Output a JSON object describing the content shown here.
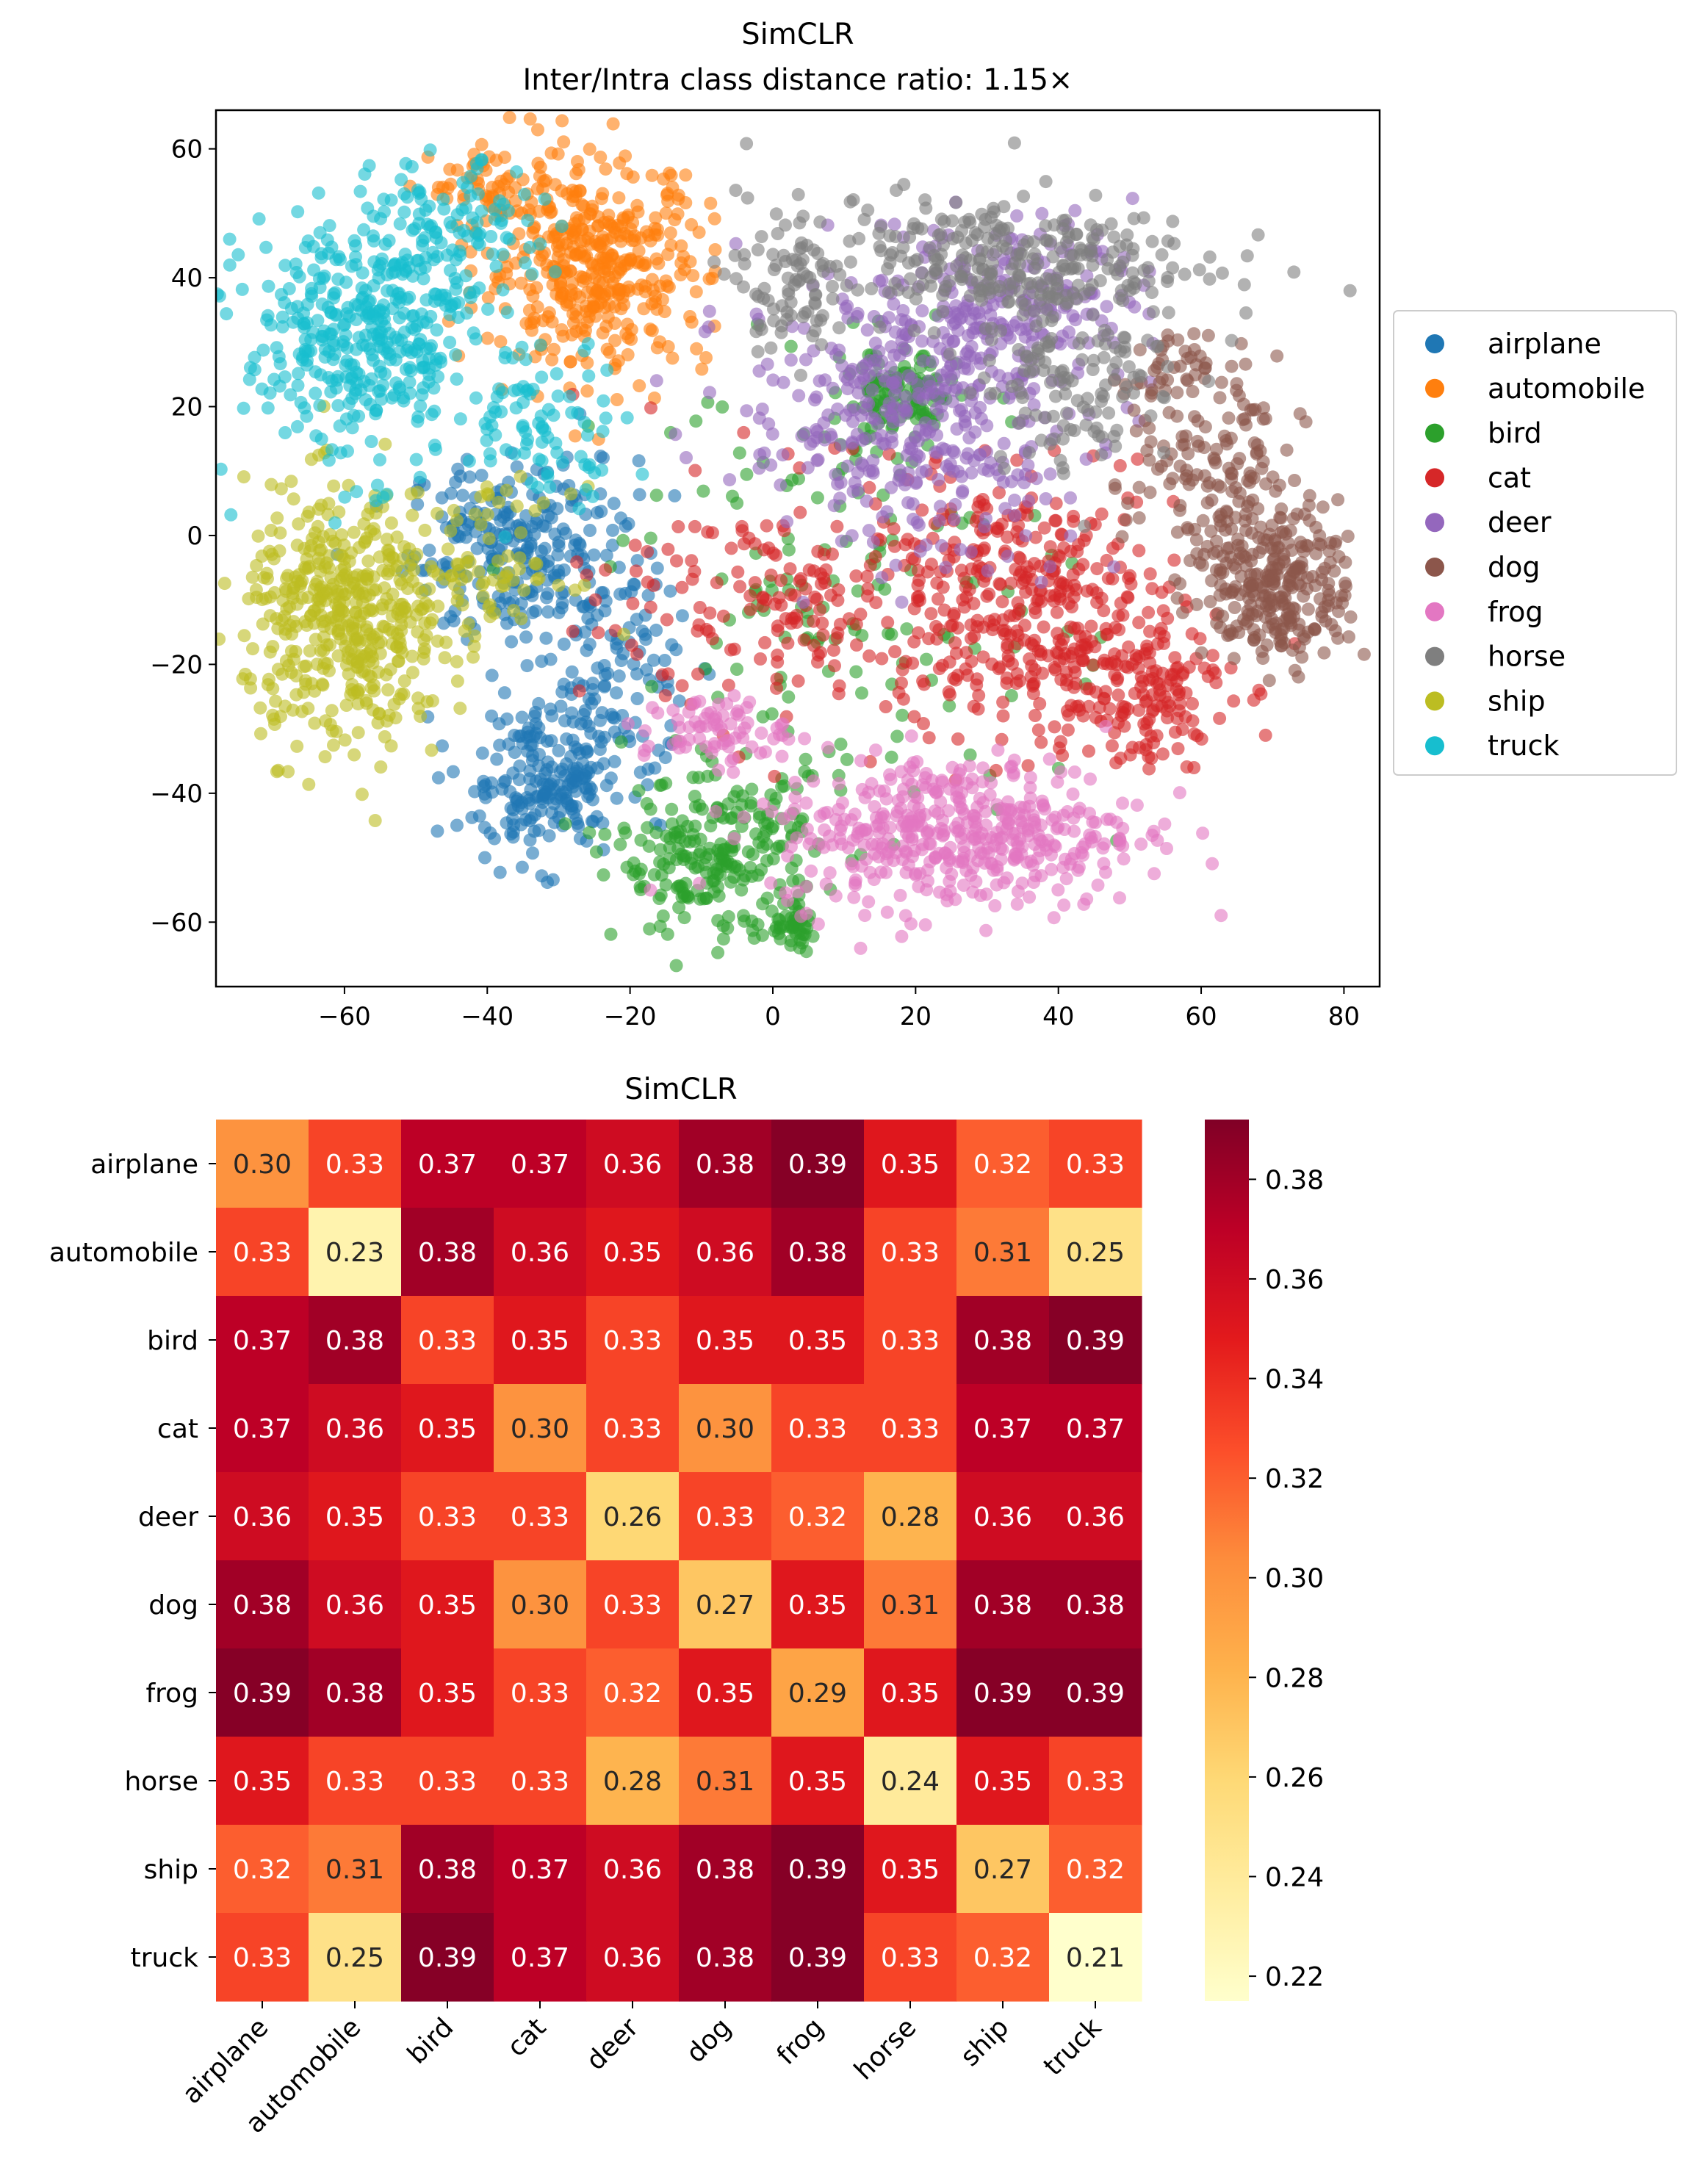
{
  "chart_data": [
    {
      "type": "scatter",
      "title": "SimCLR",
      "subtitle": "Inter/Intra class distance ratio: 1.15×",
      "xlim": [
        -78,
        85
      ],
      "ylim": [
        -70,
        66
      ],
      "xticks": [
        -60,
        -40,
        -20,
        0,
        20,
        40,
        60,
        80
      ],
      "yticks": [
        -60,
        -40,
        -20,
        0,
        20,
        40,
        60
      ],
      "xtick_labels": [
        "−60",
        "−40",
        "−20",
        "0",
        "20",
        "40",
        "60",
        "80"
      ],
      "ytick_labels": [
        "−60",
        "−40",
        "−20",
        "0",
        "20",
        "40",
        "60"
      ],
      "legend_position": "right",
      "grid": false,
      "series": [
        {
          "name": "airplane",
          "color": "#1f77b4",
          "clusters": [
            {
              "cx": -35,
              "cy": -2,
              "sx": 8,
              "sy": 7,
              "n": 260
            },
            {
              "cx": -32,
              "cy": -38,
              "sx": 6,
              "sy": 6,
              "n": 220
            },
            {
              "cx": -22,
              "cy": -22,
              "sx": 5,
              "sy": 7,
              "n": 90
            }
          ]
        },
        {
          "name": "automobile",
          "color": "#ff7f0e",
          "clusters": [
            {
              "cx": -25,
              "cy": 42,
              "sx": 8,
              "sy": 8,
              "n": 420
            },
            {
              "cx": -40,
              "cy": 54,
              "sx": 4,
              "sy": 3,
              "n": 50
            }
          ]
        },
        {
          "name": "bird",
          "color": "#2ca02c",
          "clusters": [
            {
              "cx": -8,
              "cy": -50,
              "sx": 7,
              "sy": 6,
              "n": 230
            },
            {
              "cx": 3,
              "cy": -61,
              "sx": 2,
              "sy": 1.5,
              "n": 40
            },
            {
              "cx": 18,
              "cy": 21,
              "sx": 4,
              "sy": 4,
              "n": 120
            },
            {
              "cx": 10,
              "cy": -10,
              "sx": 16,
              "sy": 18,
              "n": 150
            }
          ]
        },
        {
          "name": "cat",
          "color": "#d62728",
          "clusters": [
            {
              "cx": 35,
              "cy": -10,
              "sx": 11,
              "sy": 9,
              "n": 330
            },
            {
              "cx": 50,
              "cy": -24,
              "sx": 7,
              "sy": 6,
              "n": 170
            },
            {
              "cx": 5,
              "cy": -10,
              "sx": 14,
              "sy": 10,
              "n": 190
            }
          ]
        },
        {
          "name": "deer",
          "color": "#9467bd",
          "clusters": [
            {
              "cx": 20,
              "cy": 20,
              "sx": 12,
              "sy": 11,
              "n": 430
            },
            {
              "cx": 35,
              "cy": 38,
              "sx": 8,
              "sy": 6,
              "n": 150
            }
          ]
        },
        {
          "name": "dog",
          "color": "#8c564b",
          "clusters": [
            {
              "cx": 71,
              "cy": -8,
              "sx": 5,
              "sy": 6,
              "n": 260
            },
            {
              "cx": 62,
              "cy": 8,
              "sx": 6,
              "sy": 9,
              "n": 150
            },
            {
              "cx": 55,
              "cy": 25,
              "sx": 3,
              "sy": 3,
              "n": 40
            }
          ]
        },
        {
          "name": "frog",
          "color": "#e377c2",
          "clusters": [
            {
              "cx": 26,
              "cy": -46,
              "sx": 13,
              "sy": 6,
              "n": 460
            },
            {
              "cx": -8,
              "cy": -30,
              "sx": 5,
              "sy": 2.5,
              "n": 70
            }
          ]
        },
        {
          "name": "horse",
          "color": "#7f7f7f",
          "clusters": [
            {
              "cx": 28,
              "cy": 43,
              "sx": 16,
              "sy": 5,
              "n": 300
            },
            {
              "cx": 43,
              "cy": 26,
              "sx": 7,
              "sy": 8,
              "n": 140
            },
            {
              "cx": 2,
              "cy": 37,
              "sx": 3,
              "sy": 4,
              "n": 50
            }
          ]
        },
        {
          "name": "ship",
          "color": "#bcbd22",
          "clusters": [
            {
              "cx": -60,
              "cy": -13,
              "sx": 7,
              "sy": 10,
              "n": 460
            },
            {
              "cx": -40,
              "cy": -5,
              "sx": 6,
              "sy": 6,
              "n": 80
            }
          ]
        },
        {
          "name": "truck",
          "color": "#17becf",
          "clusters": [
            {
              "cx": -58,
              "cy": 30,
              "sx": 8,
              "sy": 10,
              "n": 370
            },
            {
              "cx": -45,
              "cy": 45,
              "sx": 6,
              "sy": 6,
              "n": 120
            },
            {
              "cx": -32,
              "cy": 18,
              "sx": 6,
              "sy": 6,
              "n": 80
            }
          ]
        }
      ]
    },
    {
      "type": "heatmap",
      "title": "SimCLR",
      "rows": [
        "airplane",
        "automobile",
        "bird",
        "cat",
        "deer",
        "dog",
        "frog",
        "horse",
        "ship",
        "truck"
      ],
      "columns": [
        "airplane",
        "automobile",
        "bird",
        "cat",
        "deer",
        "dog",
        "frog",
        "horse",
        "ship",
        "truck"
      ],
      "values": [
        [
          0.3,
          0.33,
          0.37,
          0.37,
          0.36,
          0.38,
          0.39,
          0.35,
          0.32,
          0.33
        ],
        [
          0.33,
          0.23,
          0.38,
          0.36,
          0.35,
          0.36,
          0.38,
          0.33,
          0.31,
          0.25
        ],
        [
          0.37,
          0.38,
          0.33,
          0.35,
          0.33,
          0.35,
          0.35,
          0.33,
          0.38,
          0.39
        ],
        [
          0.37,
          0.36,
          0.35,
          0.3,
          0.33,
          0.3,
          0.33,
          0.33,
          0.37,
          0.37
        ],
        [
          0.36,
          0.35,
          0.33,
          0.33,
          0.26,
          0.33,
          0.32,
          0.28,
          0.36,
          0.36
        ],
        [
          0.38,
          0.36,
          0.35,
          0.3,
          0.33,
          0.27,
          0.35,
          0.31,
          0.38,
          0.38
        ],
        [
          0.39,
          0.38,
          0.35,
          0.33,
          0.32,
          0.35,
          0.29,
          0.35,
          0.39,
          0.39
        ],
        [
          0.35,
          0.33,
          0.33,
          0.33,
          0.28,
          0.31,
          0.35,
          0.24,
          0.35,
          0.33
        ],
        [
          0.32,
          0.31,
          0.38,
          0.37,
          0.36,
          0.38,
          0.39,
          0.35,
          0.27,
          0.32
        ],
        [
          0.33,
          0.25,
          0.39,
          0.37,
          0.36,
          0.38,
          0.39,
          0.33,
          0.32,
          0.21
        ]
      ],
      "colormap": "YlOrRd",
      "vmin": 0.215,
      "vmax": 0.392,
      "colorbar_ticks": [
        0.22,
        0.24,
        0.26,
        0.28,
        0.3,
        0.32,
        0.34,
        0.36,
        0.38
      ],
      "colorbar_tick_labels": [
        "0.22",
        "0.24",
        "0.26",
        "0.28",
        "0.30",
        "0.32",
        "0.34",
        "0.36",
        "0.38"
      ]
    }
  ]
}
